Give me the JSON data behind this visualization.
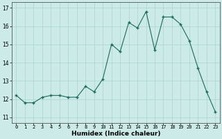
{
  "x": [
    0,
    1,
    2,
    3,
    4,
    5,
    6,
    7,
    8,
    9,
    10,
    11,
    12,
    13,
    14,
    15,
    16,
    17,
    18,
    19,
    20,
    21,
    22,
    23
  ],
  "y": [
    12.2,
    11.8,
    11.8,
    12.1,
    12.2,
    12.2,
    12.1,
    12.1,
    12.7,
    12.4,
    13.1,
    15.0,
    14.6,
    16.2,
    15.9,
    16.8,
    14.7,
    16.5,
    16.5,
    16.1,
    15.2,
    13.7,
    12.4,
    11.3
  ],
  "line_color": "#1a6b5a",
  "marker": "+",
  "marker_size": 3,
  "marker_linewidth": 1.0,
  "line_width": 0.8,
  "bg_color": "#cceae8",
  "grid_color": "#aad4d2",
  "xlabel": "Humidex (Indice chaleur)",
  "ylabel_ticks": [
    11,
    12,
    13,
    14,
    15,
    16,
    17
  ],
  "xlim": [
    -0.5,
    23.5
  ],
  "ylim": [
    10.7,
    17.3
  ],
  "xtick_fontsize": 5.0,
  "ytick_fontsize": 5.5,
  "xlabel_fontsize": 6.5
}
